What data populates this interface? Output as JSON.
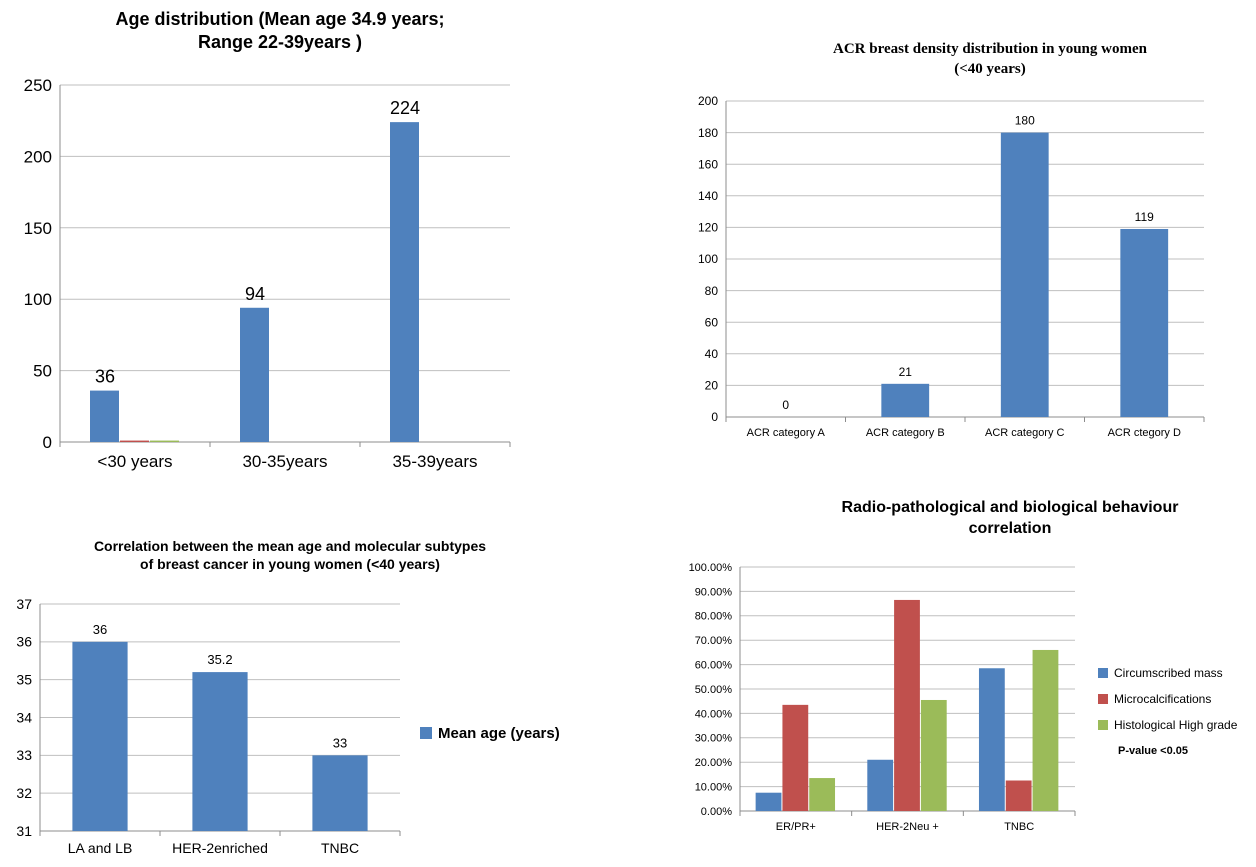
{
  "chart_data": [
    {
      "type": "bar",
      "title": [
        "Age distribution (Mean age 34.9 years;",
        "Range 22-39years )"
      ],
      "categories": [
        "<30 years",
        "30-35years",
        "35-39years"
      ],
      "series": [
        {
          "values": [
            36,
            94,
            224
          ],
          "color": "#4F81BD",
          "labels": [
            "36",
            "94",
            "224"
          ]
        },
        {
          "values": [
            1,
            0,
            0
          ],
          "color": "#C0504D"
        },
        {
          "values": [
            1,
            0,
            0
          ],
          "color": "#9BBB59"
        }
      ],
      "ylim": [
        0,
        250
      ],
      "yticks": [
        0,
        50,
        100,
        150,
        200,
        250
      ],
      "grid": true
    },
    {
      "type": "bar",
      "title": [
        "ACR breast density distribution in young women",
        "(<40 years)"
      ],
      "categories": [
        "ACR category A",
        "ACR category B",
        "ACR category C",
        "ACR ctegory D"
      ],
      "series": [
        {
          "values": [
            0,
            21,
            180,
            119
          ],
          "color": "#4F81BD",
          "labels": [
            "0",
            "21",
            "180",
            "119"
          ]
        }
      ],
      "ylim": [
        0,
        200
      ],
      "yticks": [
        0,
        20,
        40,
        60,
        80,
        100,
        120,
        140,
        160,
        180,
        200
      ],
      "grid": true
    },
    {
      "type": "bar",
      "title": [
        "Correlation between the mean age and molecular subtypes",
        "of breast cancer in young women (<40 years)"
      ],
      "categories": [
        "LA and LB",
        "HER-2enriched",
        "TNBC"
      ],
      "series": [
        {
          "name": "Mean age (years)",
          "values": [
            36,
            35.2,
            33
          ],
          "color": "#4F81BD",
          "labels": [
            "36",
            "35.2",
            "33"
          ]
        }
      ],
      "ylim": [
        31,
        37
      ],
      "yticks": [
        31,
        32,
        33,
        34,
        35,
        36,
        37
      ],
      "grid": true,
      "legend": "right"
    },
    {
      "type": "bar",
      "title": [
        "Radio-pathological and biological behaviour",
        "correlation"
      ],
      "categories": [
        "ER/PR+",
        "HER-2Neu +",
        "TNBC"
      ],
      "series": [
        {
          "name": "Circumscribed mass",
          "values": [
            7.5,
            21,
            58.5
          ],
          "color": "#4F81BD"
        },
        {
          "name": "Microcalcifications",
          "values": [
            43.5,
            86.5,
            12.5
          ],
          "color": "#C0504D"
        },
        {
          "name": "Histological High grade",
          "values": [
            13.5,
            45.5,
            66
          ],
          "color": "#9BBB59"
        }
      ],
      "ylim": [
        0,
        100
      ],
      "yticks": [
        0,
        10,
        20,
        30,
        40,
        50,
        60,
        70,
        80,
        90,
        100
      ],
      "ytick_labels": [
        "0.00%",
        "10.00%",
        "20.00%",
        "30.00%",
        "40.00%",
        "50.00%",
        "60.00%",
        "70.00%",
        "80.00%",
        "90.00%",
        "100.00%"
      ],
      "grid": true,
      "legend": "right",
      "note": "P-value <0.05"
    }
  ]
}
